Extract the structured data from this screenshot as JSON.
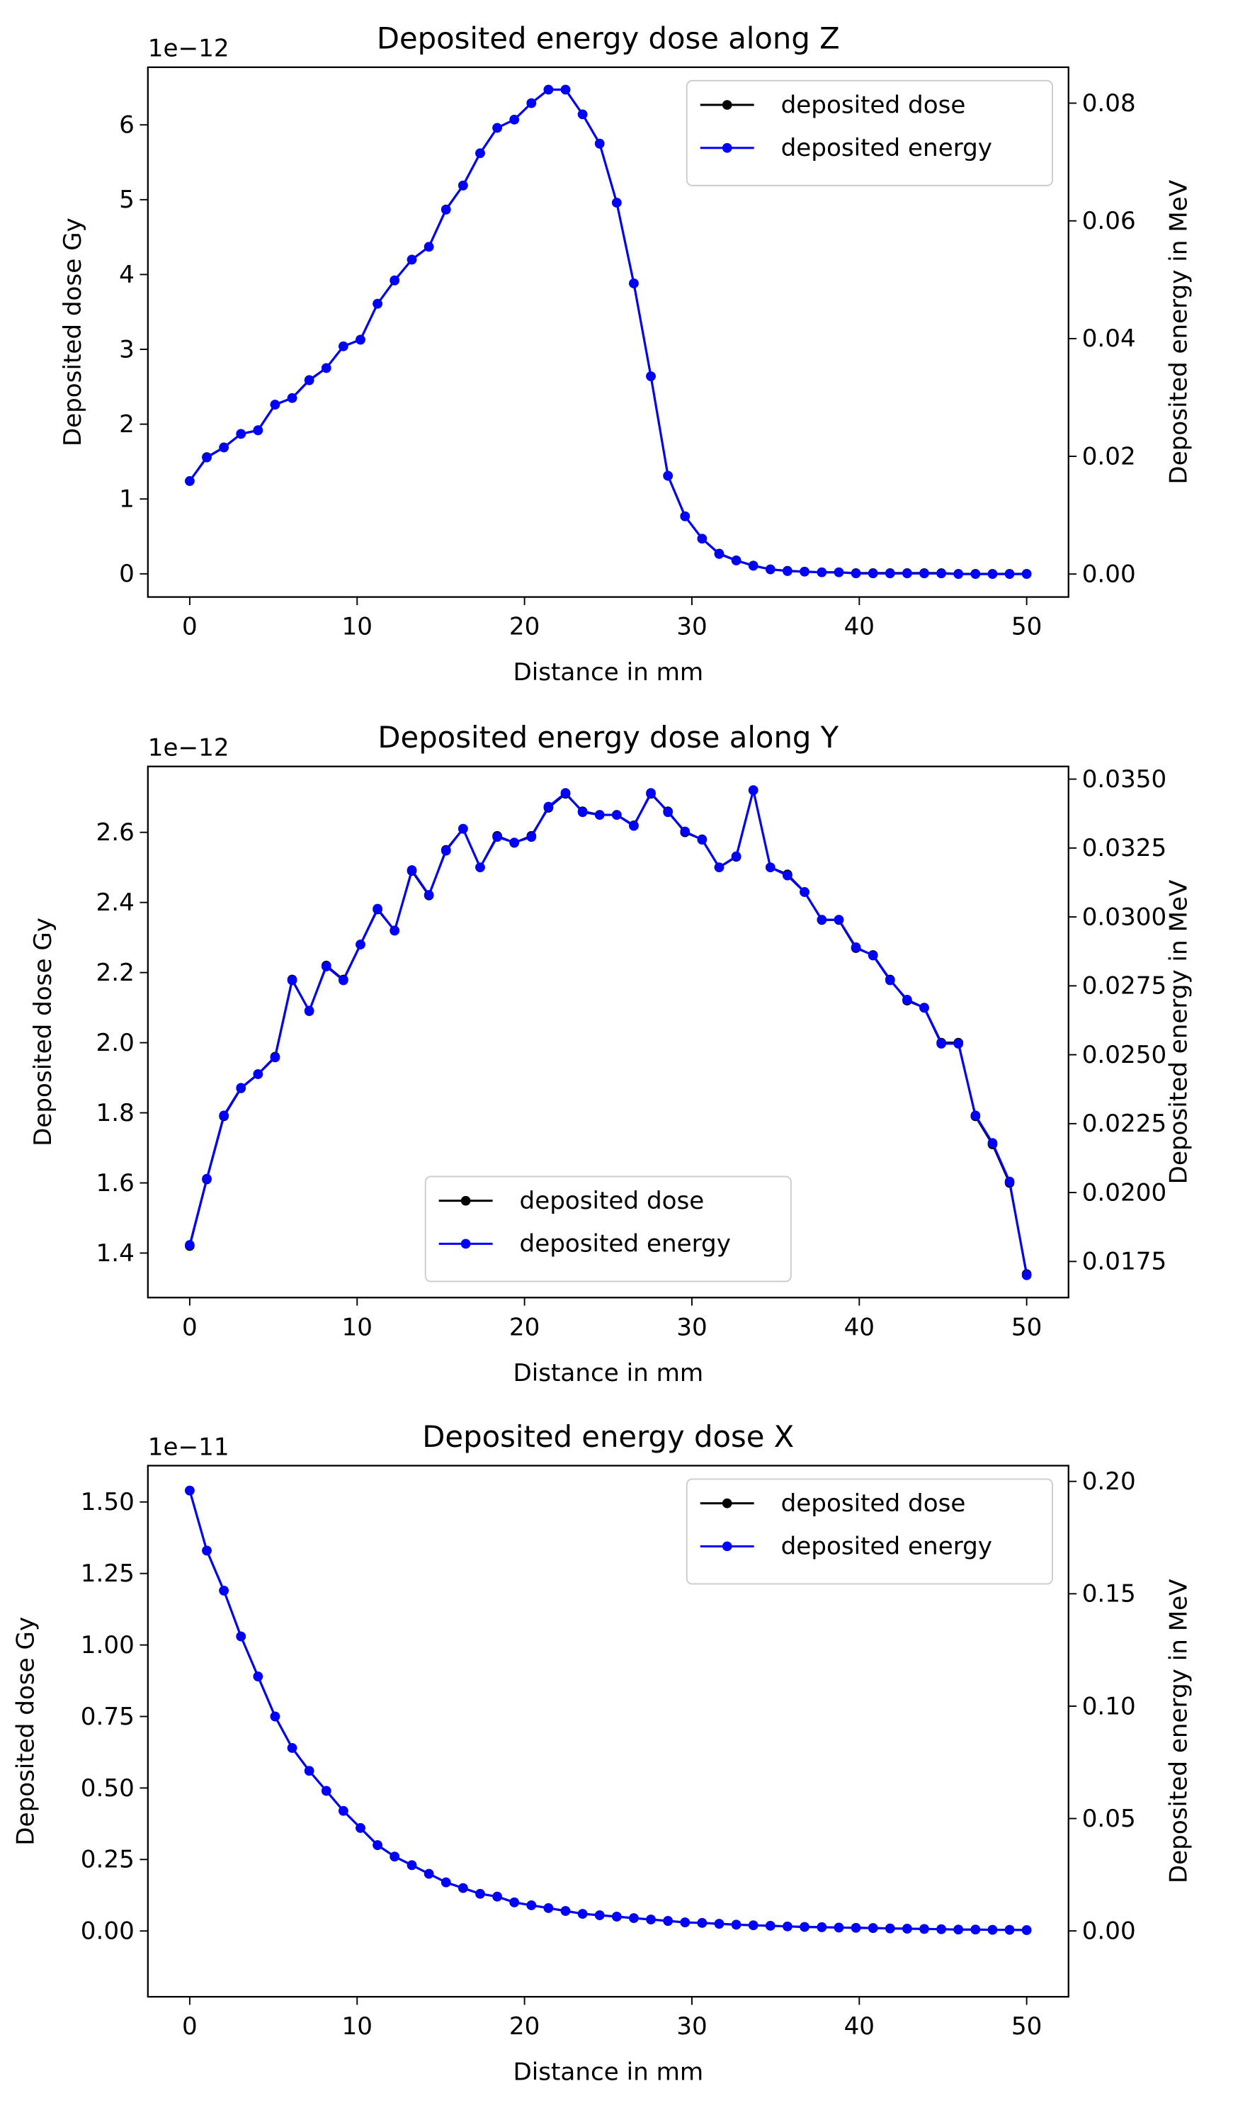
{
  "chart_data": [
    {
      "type": "line",
      "title": "Deposited energy dose along Z",
      "xlabel": "Distance in mm",
      "ylabel": "Deposited dose Gy",
      "y2label": "Deposited energy in MeV",
      "y_offset_label": "1e−12",
      "legend": "upper right",
      "x": [
        0,
        1.02,
        2.04,
        3.06,
        4.08,
        5.1,
        6.12,
        7.14,
        8.16,
        9.18,
        10.2,
        11.22,
        12.24,
        13.27,
        14.29,
        15.31,
        16.33,
        17.35,
        18.37,
        19.39,
        20.41,
        21.43,
        22.45,
        23.47,
        24.49,
        25.51,
        26.53,
        27.55,
        28.57,
        29.59,
        30.61,
        31.63,
        32.65,
        33.67,
        34.69,
        35.71,
        36.73,
        37.76,
        38.78,
        39.8,
        40.82,
        41.84,
        42.86,
        43.88,
        44.9,
        45.92,
        46.94,
        47.96,
        48.98,
        50
      ],
      "xlim": [
        -2.5,
        52.5
      ],
      "xticks": [
        0,
        10,
        20,
        30,
        40,
        50
      ],
      "ylim": [
        -0.31,
        6.77
      ],
      "yticks": [
        0,
        1,
        2,
        3,
        4,
        5,
        6
      ],
      "y2lim": [
        -0.0039,
        0.0861
      ],
      "y2ticks": [
        {
          "value": 0,
          "label": "0.00"
        },
        0.02,
        0.04,
        0.06,
        0.08
      ],
      "series": [
        {
          "name": "deposited dose",
          "color": "#000000",
          "values": [
            1.24,
            1.56,
            1.69,
            1.87,
            1.92,
            2.26,
            2.35,
            2.59,
            2.75,
            3.04,
            3.13,
            3.61,
            3.92,
            4.2,
            4.37,
            4.87,
            5.19,
            5.62,
            5.96,
            6.07,
            6.29,
            6.47,
            6.47,
            6.14,
            5.75,
            4.96,
            3.88,
            2.64,
            1.31,
            0.77,
            0.47,
            0.27,
            0.18,
            0.11,
            0.06,
            0.04,
            0.03,
            0.02,
            0.02,
            0.01,
            0.01,
            0.01,
            0.01,
            0.01,
            0.01,
            0,
            0,
            0,
            0,
            0
          ]
        },
        {
          "name": "deposited energy",
          "color": "#0000ff",
          "axis": "y2",
          "values": [
            0.0158,
            0.0198,
            0.0215,
            0.0238,
            0.0244,
            0.0288,
            0.0299,
            0.0329,
            0.035,
            0.0387,
            0.0398,
            0.0459,
            0.0499,
            0.0534,
            0.0556,
            0.0619,
            0.066,
            0.0715,
            0.0758,
            0.0772,
            0.08,
            0.0823,
            0.0823,
            0.0781,
            0.0731,
            0.0631,
            0.0494,
            0.0336,
            0.0167,
            0.0098,
            0.006,
            0.0034,
            0.0023,
            0.0014,
            0.0008,
            0.0005,
            0.0004,
            0.0003,
            0.0003,
            0.0001,
            0.0001,
            0.0001,
            0.0001,
            0.0001,
            0.0001,
            0,
            0,
            0,
            0,
            0
          ]
        }
      ]
    },
    {
      "type": "line",
      "title": "Deposited energy dose along Y",
      "xlabel": "Distance in mm",
      "ylabel": "Deposited dose Gy",
      "y2label": "Deposited energy in MeV",
      "y_offset_label": "1e−12",
      "legend": "lower center",
      "x": [
        0,
        1.02,
        2.04,
        3.06,
        4.08,
        5.1,
        6.12,
        7.14,
        8.16,
        9.18,
        10.2,
        11.22,
        12.24,
        13.27,
        14.29,
        15.31,
        16.33,
        17.35,
        18.37,
        19.39,
        20.41,
        21.43,
        22.45,
        23.47,
        24.49,
        25.51,
        26.53,
        27.55,
        28.57,
        29.59,
        30.61,
        31.63,
        32.65,
        33.67,
        34.69,
        35.71,
        36.73,
        37.76,
        38.78,
        39.8,
        40.82,
        41.84,
        42.86,
        43.88,
        44.9,
        45.92,
        46.94,
        47.96,
        48.98,
        50
      ],
      "xlim": [
        -2.5,
        52.5
      ],
      "xticks": [
        0,
        10,
        20,
        30,
        40,
        50
      ],
      "ylim": [
        1.273,
        2.788
      ],
      "yticks": [
        1.4,
        1.6,
        1.8,
        {
          "value": 2,
          "label": "2.0"
        },
        2.2,
        2.4,
        2.6
      ],
      "y2lim": [
        0.01619,
        0.03546
      ],
      "y2ticks": [
        0.0175,
        {
          "value": 0.02,
          "label": "0.0200"
        },
        0.0225,
        {
          "value": 0.025,
          "label": "0.0250"
        },
        0.0275,
        {
          "value": 0.03,
          "label": "0.0300"
        },
        0.0325,
        {
          "value": 0.035,
          "label": "0.0350"
        }
      ],
      "series": [
        {
          "name": "deposited dose",
          "color": "#000000",
          "values": [
            1.42,
            1.61,
            1.79,
            1.87,
            1.91,
            1.96,
            2.18,
            2.09,
            2.22,
            2.18,
            2.28,
            2.38,
            2.32,
            2.49,
            2.42,
            2.55,
            2.61,
            2.5,
            2.59,
            2.57,
            2.59,
            2.67,
            2.71,
            2.66,
            2.65,
            2.65,
            2.62,
            2.71,
            2.66,
            2.6,
            2.58,
            2.5,
            2.53,
            2.72,
            2.5,
            2.48,
            2.43,
            2.35,
            2.35,
            2.27,
            2.25,
            2.18,
            2.12,
            2.1,
            2,
            2,
            1.79,
            1.71,
            1.6,
            1.34
          ]
        },
        {
          "name": "deposited energy",
          "color": "#0000ff",
          "axis": "y2",
          "values": [
            0.0181,
            0.0205,
            0.0228,
            0.0238,
            0.0243,
            0.0249,
            0.0277,
            0.0266,
            0.0282,
            0.0277,
            0.029,
            0.0303,
            0.0295,
            0.0317,
            0.0308,
            0.0324,
            0.0332,
            0.0318,
            0.0329,
            0.0327,
            0.0329,
            0.034,
            0.0345,
            0.0338,
            0.0337,
            0.0337,
            0.0333,
            0.0345,
            0.0338,
            0.0331,
            0.0328,
            0.0318,
            0.0322,
            0.0346,
            0.0318,
            0.0315,
            0.0309,
            0.0299,
            0.0299,
            0.0289,
            0.0286,
            0.0277,
            0.027,
            0.0267,
            0.0254,
            0.0254,
            0.0228,
            0.0218,
            0.0204,
            0.017
          ]
        }
      ]
    },
    {
      "type": "line",
      "title": "Deposited energy dose X",
      "xlabel": "Distance in mm",
      "ylabel": "Deposited dose Gy",
      "y2label": "Deposited energy in MeV",
      "y_offset_label": "1e−11",
      "legend": "upper right",
      "x": [
        0,
        1.02,
        2.04,
        3.06,
        4.08,
        5.1,
        6.12,
        7.14,
        8.16,
        9.18,
        10.2,
        11.22,
        12.24,
        13.27,
        14.29,
        15.31,
        16.33,
        17.35,
        18.37,
        19.39,
        20.41,
        21.43,
        22.45,
        23.47,
        24.49,
        25.51,
        26.53,
        27.55,
        28.57,
        29.59,
        30.61,
        31.63,
        32.65,
        33.67,
        34.69,
        35.71,
        36.73,
        37.76,
        38.78,
        39.8,
        40.82,
        41.84,
        42.86,
        43.88,
        44.9,
        45.92,
        46.94,
        47.96,
        48.98,
        50
      ],
      "xlim": [
        -2.5,
        52.5
      ],
      "xticks": [
        0,
        10,
        20,
        30,
        40,
        50
      ],
      "ylim": [
        -0.23,
        1.627
      ],
      "yticks": [
        {
          "value": 0,
          "label": "0.00"
        },
        0.25,
        {
          "value": 0.5,
          "label": "0.50"
        },
        0.75,
        {
          "value": 1,
          "label": "1.00"
        },
        1.25,
        {
          "value": 1.5,
          "label": "1.50"
        }
      ],
      "y2lim": [
        -0.0293,
        0.207
      ],
      "y2ticks": [
        {
          "value": 0,
          "label": "0.00"
        },
        0.05,
        {
          "value": 0.1,
          "label": "0.10"
        },
        0.15,
        {
          "value": 0.2,
          "label": "0.20"
        }
      ],
      "series": [
        {
          "name": "deposited dose",
          "color": "#000000",
          "values": [
            1.54,
            1.33,
            1.19,
            1.03,
            0.89,
            0.75,
            0.64,
            0.56,
            0.49,
            0.42,
            0.36,
            0.3,
            0.26,
            0.23,
            0.2,
            0.17,
            0.15,
            0.13,
            0.12,
            0.1,
            0.09,
            0.08,
            0.07,
            0.06,
            0.055,
            0.05,
            0.045,
            0.04,
            0.035,
            0.03,
            0.028,
            0.025,
            0.022,
            0.02,
            0.018,
            0.016,
            0.014,
            0.013,
            0.012,
            0.011,
            0.01,
            0.009,
            0.008,
            0.007,
            0.006,
            0.005,
            0.005,
            0.004,
            0.004,
            0.003
          ]
        },
        {
          "name": "deposited energy",
          "color": "#0000ff",
          "axis": "y2",
          "values": [
            0.1959,
            0.1692,
            0.1514,
            0.131,
            0.1132,
            0.0954,
            0.0814,
            0.0712,
            0.0623,
            0.0534,
            0.0458,
            0.0382,
            0.0331,
            0.0293,
            0.0254,
            0.0216,
            0.0191,
            0.0165,
            0.0153,
            0.0127,
            0.0114,
            0.0102,
            0.0089,
            0.0076,
            0.007,
            0.0064,
            0.0057,
            0.0051,
            0.0045,
            0.0038,
            0.0036,
            0.0032,
            0.0028,
            0.0025,
            0.0023,
            0.002,
            0.0018,
            0.0017,
            0.0015,
            0.0014,
            0.0013,
            0.0011,
            0.001,
            0.0009,
            0.0008,
            0.0006,
            0.0006,
            0.0005,
            0.0005,
            0.0004
          ]
        }
      ]
    }
  ]
}
